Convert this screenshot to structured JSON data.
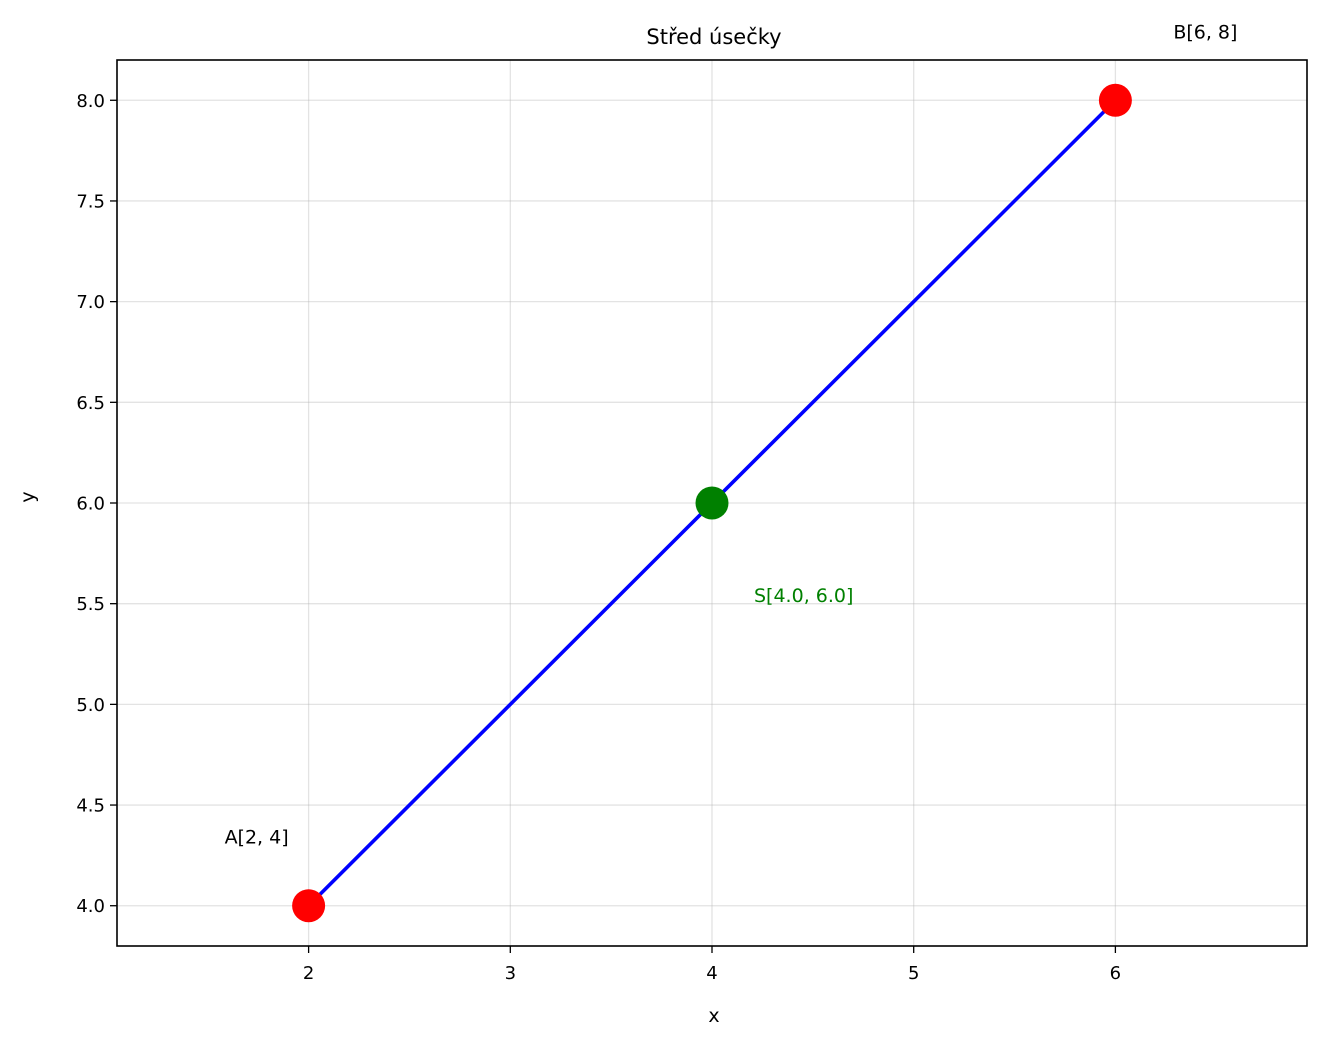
{
  "chart_data": {
    "type": "line",
    "title": "Střed úsečky",
    "xlabel": "x",
    "ylabel": "y",
    "xlim": [
      1.05,
      6.95
    ],
    "ylim": [
      3.8,
      8.2
    ],
    "xticks": [
      2,
      3,
      4,
      5,
      6
    ],
    "xtick_labels": [
      "2",
      "3",
      "4",
      "5",
      "6"
    ],
    "yticks": [
      4.0,
      4.5,
      5.0,
      5.5,
      6.0,
      6.5,
      7.0,
      7.5,
      8.0
    ],
    "ytick_labels": [
      "4.0",
      "4.5",
      "5.0",
      "5.5",
      "6.0",
      "6.5",
      "7.0",
      "7.5",
      "8.0"
    ],
    "grid": true,
    "segment": {
      "x": [
        2,
        6
      ],
      "y": [
        4,
        8
      ],
      "color": "#0000ff"
    },
    "points": [
      {
        "label": "A[2, 4]",
        "x": 2,
        "y": 4,
        "color": "#ff0000",
        "label_color": "#000000"
      },
      {
        "label": "B[6, 8]",
        "x": 6,
        "y": 8,
        "color": "#ff0000",
        "label_color": "#000000"
      },
      {
        "label": "S[4.0, 6.0]",
        "x": 4.0,
        "y": 6.0,
        "color": "#008000",
        "label_color": "#008000"
      }
    ]
  }
}
